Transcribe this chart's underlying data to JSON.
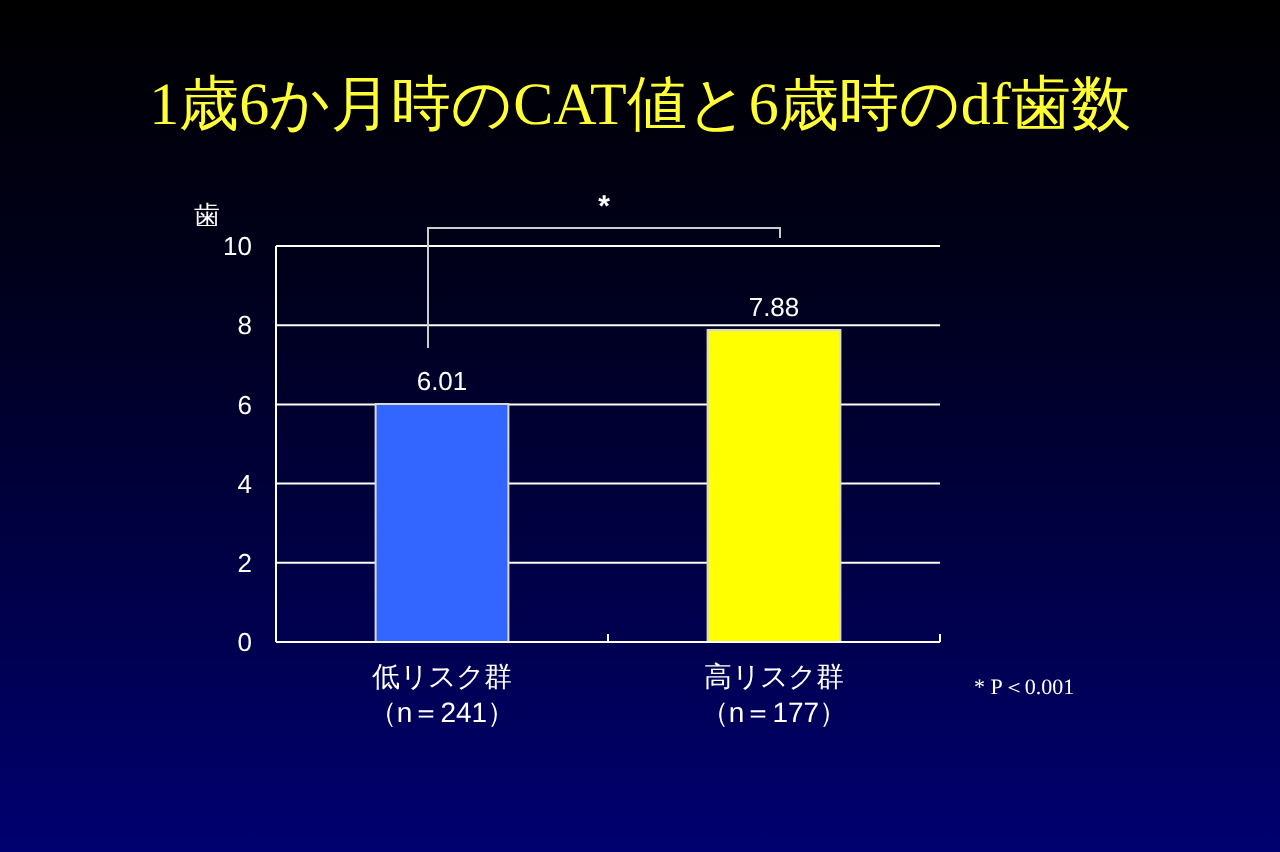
{
  "chart_data": {
    "type": "bar",
    "title": "1歳6か月時のCAT値と6歳時のdf歯数",
    "ylabel": "歯",
    "categories": [
      "低リスク群（n＝241）",
      "高リスク群（n＝177）"
    ],
    "values": [
      6.01,
      7.88
    ],
    "colors": [
      "#3366ff",
      "#ffff00"
    ],
    "ylim": [
      0,
      10
    ],
    "yticks": [
      0,
      2,
      4,
      6,
      8,
      10
    ],
    "grid": "y",
    "data_labels": true,
    "annotations": [
      "*",
      "* P＜0.001"
    ]
  }
}
